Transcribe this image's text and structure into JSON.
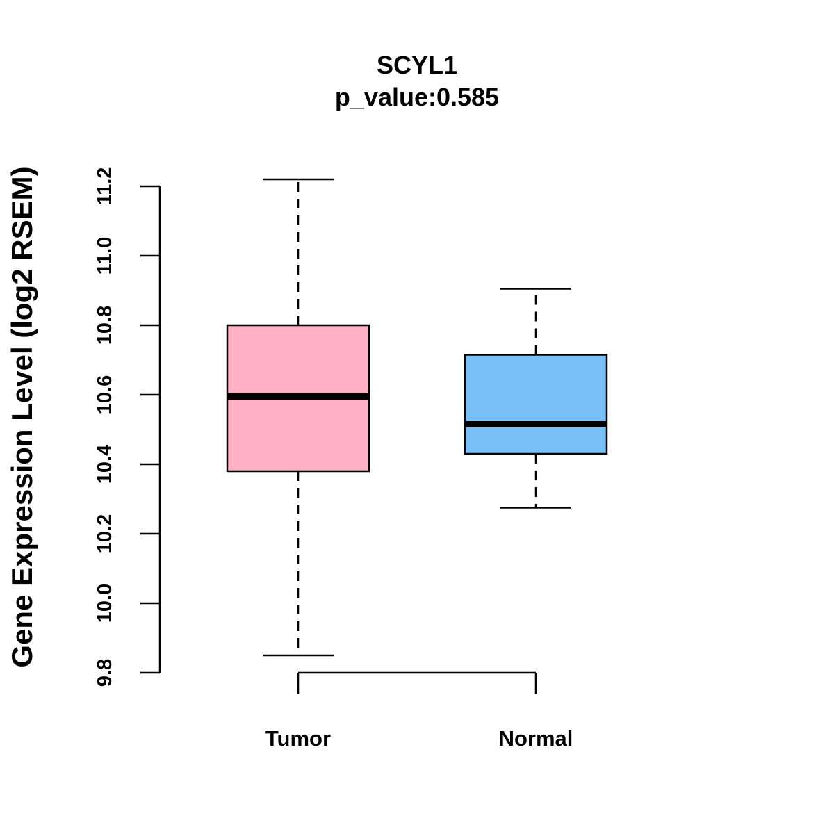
{
  "chart_data": {
    "type": "box",
    "title": "SCYL1",
    "subtitle": "p_value:0.585",
    "ylabel": "Gene Expression Level (log2 RSEM)",
    "xlabel": "",
    "ylim": [
      9.8,
      11.2
    ],
    "yticks": [
      "9.8",
      "10.0",
      "10.2",
      "10.4",
      "10.6",
      "10.8",
      "11.0",
      "11.2"
    ],
    "categories": [
      "Tumor",
      "Normal"
    ],
    "boxes": [
      {
        "name": "Tumor",
        "min": 9.85,
        "q1": 10.38,
        "median": 10.595,
        "q3": 10.8,
        "max": 11.22,
        "color": "#FFB0C3"
      },
      {
        "name": "Normal",
        "min": 10.275,
        "q1": 10.43,
        "median": 10.515,
        "q3": 10.715,
        "max": 10.905,
        "color": "#78C0F8"
      }
    ],
    "grid": false,
    "legend": "none"
  }
}
